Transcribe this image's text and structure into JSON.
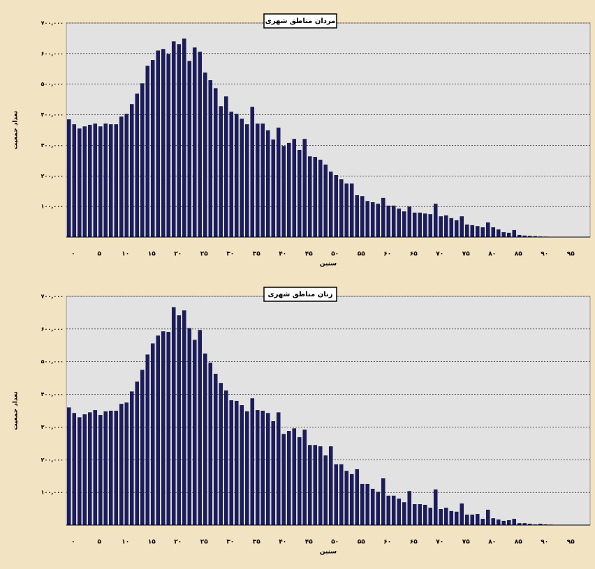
{
  "chart_data": [
    {
      "type": "bar",
      "title": "مردان مناطق شهری",
      "y_label": "تعداد جمعیت",
      "x_label": "سنین",
      "color": "#1c1c5a",
      "grid": true,
      "categories": [
        "۰",
        null,
        null,
        null,
        null,
        "۵",
        null,
        null,
        null,
        null,
        "۱۰",
        null,
        null,
        null,
        null,
        "۱۵",
        null,
        null,
        null,
        null,
        "۲۰",
        null,
        null,
        null,
        null,
        "۲۵",
        null,
        null,
        null,
        null,
        "۳۰",
        null,
        null,
        null,
        null,
        "۳۵",
        null,
        null,
        null,
        null,
        "۴۰",
        null,
        null,
        null,
        null,
        "۴۵",
        null,
        null,
        null,
        null,
        "۵۰",
        null,
        null,
        null,
        null,
        "۵۵",
        null,
        null,
        null,
        null,
        "۶۰",
        null,
        null,
        null,
        null,
        "۶۵",
        null,
        null,
        null,
        null,
        "۷۰",
        null,
        null,
        null,
        null,
        "۷۵",
        null,
        null,
        null,
        null,
        "۸۰",
        null,
        null,
        null,
        null,
        "۸۵",
        null,
        null,
        null,
        null,
        "۹۰",
        null,
        null,
        null,
        null,
        "۹۵",
        null,
        null,
        null,
        null
      ],
      "values": [
        385000,
        369000,
        355000,
        362000,
        367000,
        371000,
        362000,
        371000,
        369000,
        369000,
        394000,
        403000,
        435000,
        469000,
        503000,
        560000,
        579000,
        610000,
        615000,
        599000,
        640000,
        631000,
        649000,
        576000,
        620000,
        606000,
        538000,
        513000,
        487000,
        428000,
        460000,
        410000,
        403000,
        387000,
        369000,
        426000,
        371000,
        371000,
        349000,
        319000,
        358000,
        298000,
        308000,
        321000,
        285000,
        321000,
        264000,
        262000,
        253000,
        237000,
        214000,
        203000,
        189000,
        175000,
        175000,
        137000,
        134000,
        118000,
        114000,
        109000,
        128000,
        103000,
        103000,
        93000,
        84000,
        100000,
        80000,
        80000,
        77000,
        75000,
        109000,
        68000,
        71000,
        62000,
        55000,
        68000,
        41000,
        39000,
        36000,
        32000,
        48000,
        32000,
        25000,
        16000,
        14000,
        23000,
        7000,
        5000,
        4000,
        3000,
        2000,
        1500,
        1000,
        1000,
        800,
        500,
        400,
        300,
        200,
        100
      ],
      "ylim": [
        0,
        700000
      ],
      "yticks": [
        {
          "value": 100000,
          "label": "۱۰۰,۰۰۰"
        },
        {
          "value": 200000,
          "label": "۲۰۰,۰۰۰"
        },
        {
          "value": 300000,
          "label": "۳۰۰,۰۰۰"
        },
        {
          "value": 400000,
          "label": "۴۰۰,۰۰۰"
        },
        {
          "value": 500000,
          "label": "۵۰۰,۰۰۰"
        },
        {
          "value": 600000,
          "label": "۶۰۰,۰۰۰"
        },
        {
          "value": 700000,
          "label": "۷۰۰,۰۰۰"
        }
      ]
    },
    {
      "type": "bar",
      "title": "زنان مناطق شهری",
      "y_label": "تعداد جمعیت",
      "x_label": "سنین",
      "color": "#1c1c5a",
      "grid": true,
      "categories": [
        "۰",
        null,
        null,
        null,
        null,
        "۵",
        null,
        null,
        null,
        null,
        "۱۰",
        null,
        null,
        null,
        null,
        "۱۵",
        null,
        null,
        null,
        null,
        "۲۰",
        null,
        null,
        null,
        null,
        "۲۵",
        null,
        null,
        null,
        null,
        "۳۰",
        null,
        null,
        null,
        null,
        "۳۵",
        null,
        null,
        null,
        null,
        "۴۰",
        null,
        null,
        null,
        null,
        "۴۵",
        null,
        null,
        null,
        null,
        "۵۰",
        null,
        null,
        null,
        null,
        "۵۵",
        null,
        null,
        null,
        null,
        "۶۰",
        null,
        null,
        null,
        null,
        "۶۵",
        null,
        null,
        null,
        null,
        "۷۰",
        null,
        null,
        null,
        null,
        "۷۵",
        null,
        null,
        null,
        null,
        "۸۰",
        null,
        null,
        null,
        null,
        "۸۵",
        null,
        null,
        null,
        null,
        "۹۰",
        null,
        null,
        null,
        null,
        "۹۵",
        null,
        null,
        null,
        null
      ],
      "values": [
        360000,
        343000,
        330000,
        339000,
        345000,
        352000,
        337000,
        348000,
        350000,
        350000,
        371000,
        375000,
        409000,
        439000,
        475000,
        522000,
        556000,
        580000,
        593000,
        591000,
        667000,
        642000,
        657000,
        603000,
        567000,
        597000,
        525000,
        497000,
        463000,
        435000,
        412000,
        382000,
        380000,
        367000,
        348000,
        388000,
        352000,
        350000,
        343000,
        318000,
        345000,
        279000,
        288000,
        296000,
        269000,
        292000,
        245000,
        245000,
        241000,
        213000,
        241000,
        186000,
        186000,
        166000,
        156000,
        171000,
        126000,
        126000,
        111000,
        102000,
        143000,
        90000,
        90000,
        81000,
        70000,
        104000,
        64000,
        64000,
        62000,
        53000,
        109000,
        49000,
        53000,
        43000,
        41000,
        66000,
        32000,
        32000,
        34000,
        19000,
        47000,
        21000,
        17000,
        13000,
        15000,
        19000,
        6000,
        6000,
        4000,
        2000,
        4000,
        2000,
        1500,
        1000,
        800,
        600,
        400,
        300,
        200,
        100
      ],
      "ylim": [
        0,
        700000
      ],
      "yticks": [
        {
          "value": 100000,
          "label": "۱۰۰,۰۰۰"
        },
        {
          "value": 200000,
          "label": "۲۰۰,۰۰۰"
        },
        {
          "value": 300000,
          "label": "۳۰۰,۰۰۰"
        },
        {
          "value": 400000,
          "label": "۴۰۰,۰۰۰"
        },
        {
          "value": 500000,
          "label": "۵۰۰,۰۰۰"
        },
        {
          "value": 600000,
          "label": "۶۰۰,۰۰۰"
        },
        {
          "value": 700000,
          "label": "۷۰۰,۰۰۰"
        }
      ]
    }
  ]
}
